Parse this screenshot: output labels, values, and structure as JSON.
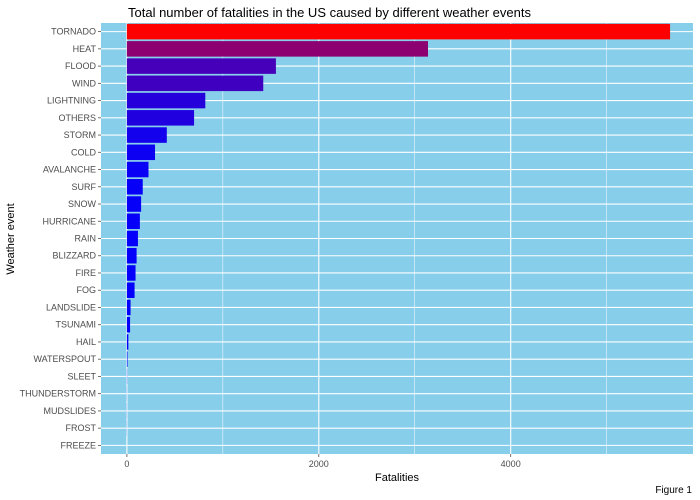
{
  "caption": "Figure 1",
  "chart_data": {
    "type": "bar",
    "orientation": "horizontal",
    "title": "Total number of fatalities in the US caused by different weather events",
    "xlabel": "Fatalities",
    "ylabel": "Weather event",
    "xlim": [
      -270,
      5900
    ],
    "xticks": [
      0,
      2000,
      4000
    ],
    "grid": true,
    "background_color": "#87CEEB",
    "gridline_color": "#ffffff",
    "gradient": {
      "low": "#0000FF",
      "high": "#FF0000"
    },
    "categories": [
      "TORNADO",
      "HEAT",
      "FLOOD",
      "WIND",
      "LIGHTNING",
      "OTHERS",
      "STORM",
      "COLD",
      "AVALANCHE",
      "SURF",
      "SNOW",
      "HURRICANE",
      "RAIN",
      "BLIZZARD",
      "FIRE",
      "FOG",
      "LANDSLIDE",
      "TSUNAMI",
      "HAIL",
      "WATERSPOUT",
      "SLEET",
      "THUNDERSTORM",
      "MUDSLIDES",
      "FROST",
      "FREEZE"
    ],
    "values": [
      5661,
      3138,
      1553,
      1421,
      817,
      700,
      416,
      293,
      225,
      165,
      148,
      135,
      115,
      101,
      90,
      80,
      38,
      33,
      15,
      6,
      2,
      1,
      1,
      1,
      0
    ]
  }
}
